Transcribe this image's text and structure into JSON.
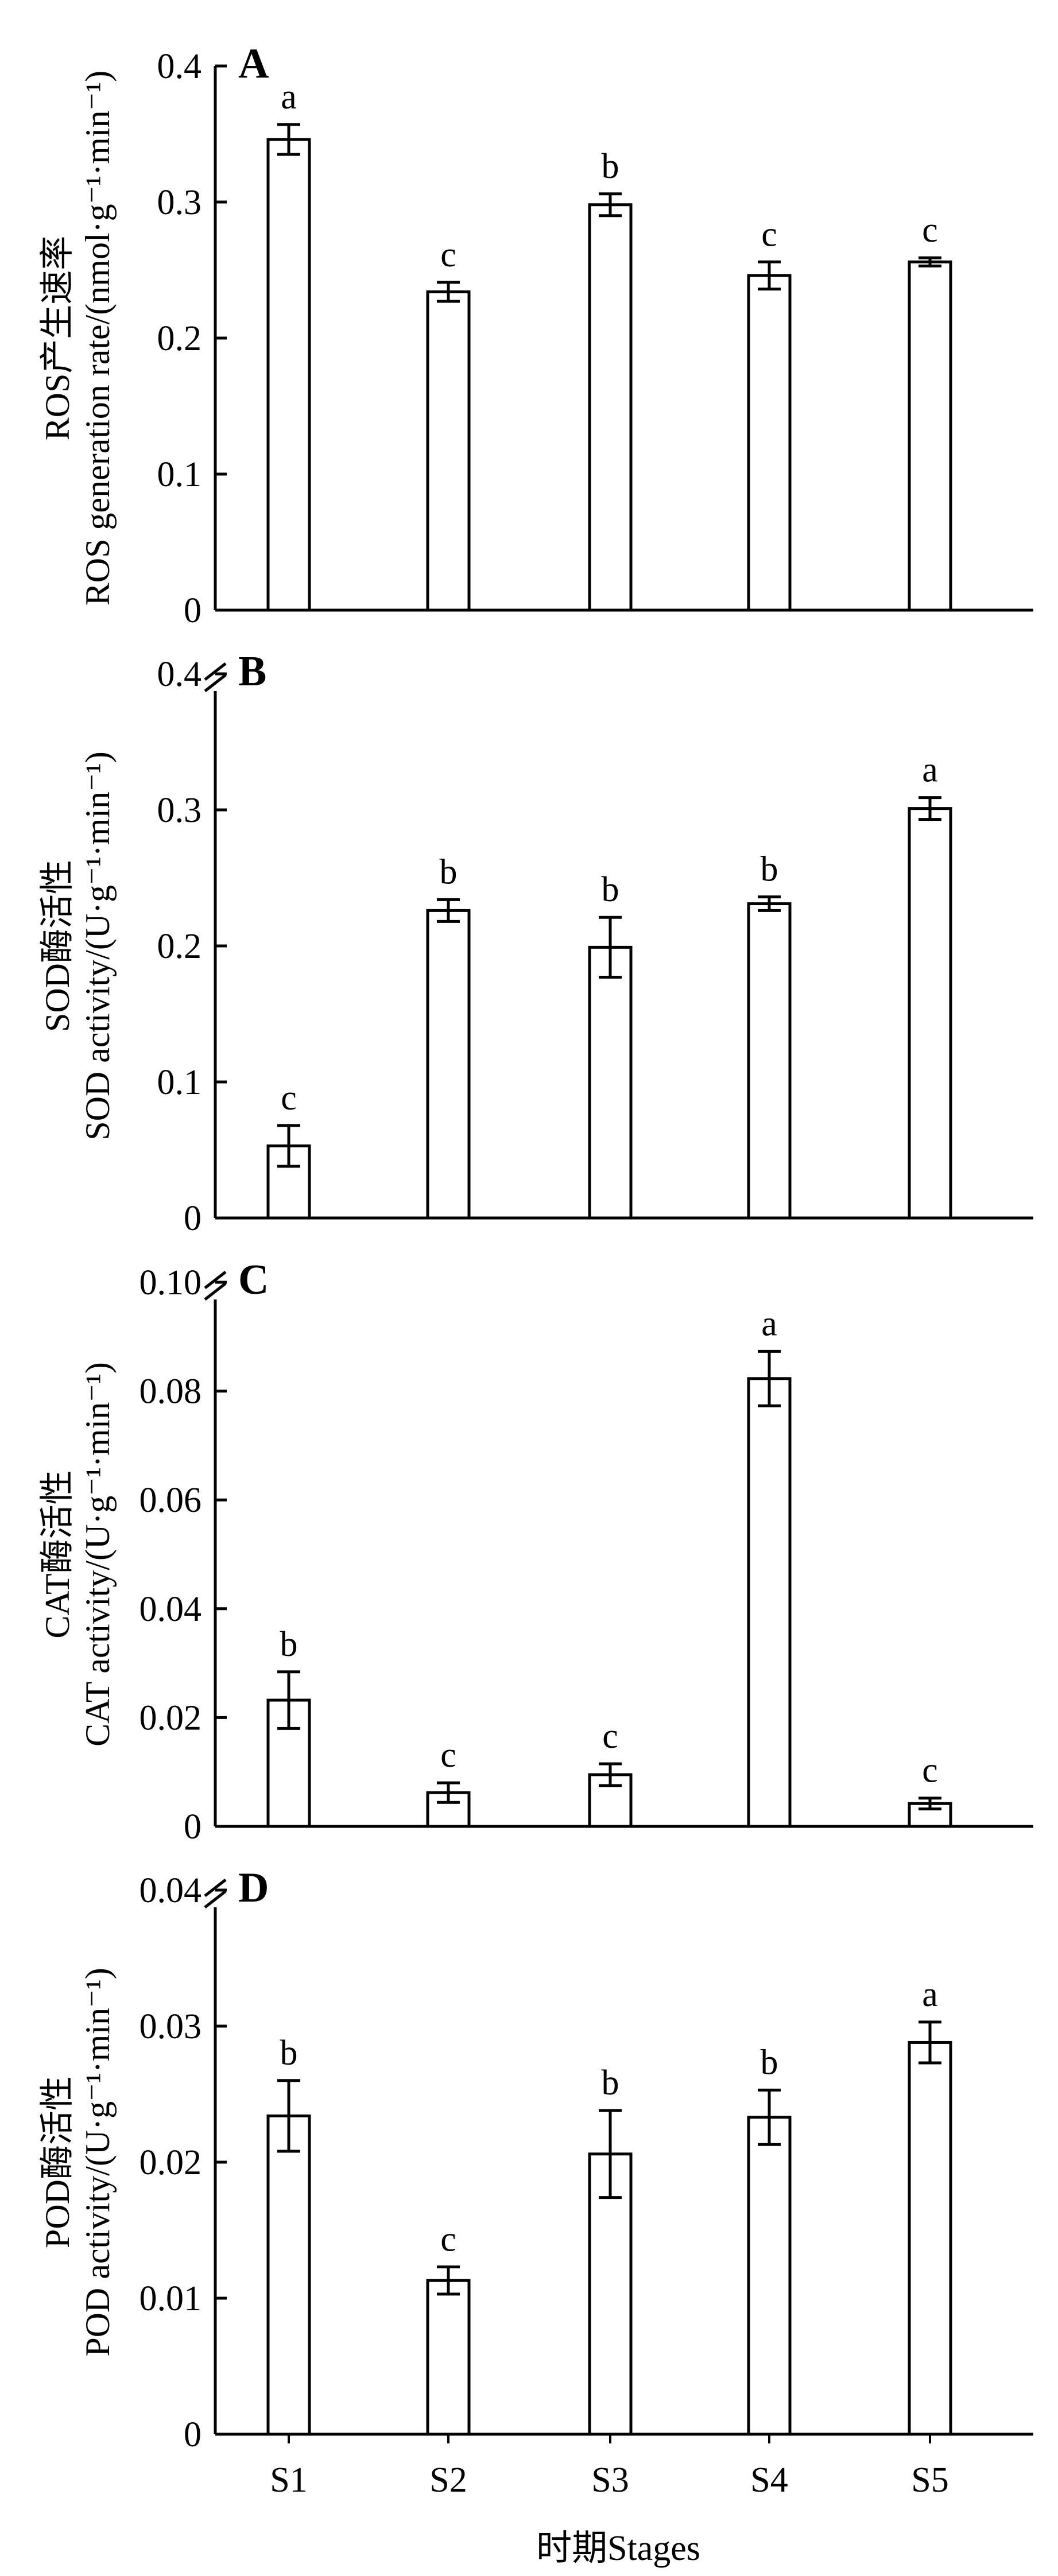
{
  "chart_data": [
    {
      "type": "bar",
      "panel": "A",
      "categories": [
        "S1",
        "S2",
        "S3",
        "S4",
        "S5"
      ],
      "values": [
        0.346,
        0.234,
        0.298,
        0.246,
        0.256
      ],
      "errors": [
        0.011,
        0.007,
        0.008,
        0.01,
        0.003
      ],
      "significance": [
        "a",
        "c",
        "b",
        "c",
        "c"
      ],
      "ylabel_cn": "ROS产生速率",
      "ylabel_en": "ROS generation rate/(nmol·g⁻¹·min⁻¹)",
      "ylim": [
        0,
        0.4
      ],
      "yticks": [
        0,
        0.1,
        0.2,
        0.3,
        0.4
      ],
      "ytick_labels": [
        "0",
        "0.1",
        "0.2",
        "0.3",
        "0.4"
      ]
    },
    {
      "type": "bar",
      "panel": "B",
      "categories": [
        "S1",
        "S2",
        "S3",
        "S4",
        "S5"
      ],
      "values": [
        0.053,
        0.226,
        0.199,
        0.231,
        0.301
      ],
      "errors": [
        0.015,
        0.008,
        0.022,
        0.005,
        0.008
      ],
      "significance": [
        "c",
        "b",
        "b",
        "b",
        "a"
      ],
      "ylabel_cn": "SOD酶活性",
      "ylabel_en": "SOD activity/(U·g⁻¹·min⁻¹)",
      "ylim": [
        0,
        0.4
      ],
      "yticks": [
        0,
        0.1,
        0.2,
        0.3,
        0.4
      ],
      "ytick_labels": [
        "0",
        "0.1",
        "0.2",
        "0.3",
        "0.4"
      ]
    },
    {
      "type": "bar",
      "panel": "C",
      "categories": [
        "S1",
        "S2",
        "S3",
        "S4",
        "S5"
      ],
      "values": [
        0.0232,
        0.0062,
        0.0095,
        0.0823,
        0.0042
      ],
      "errors": [
        0.0052,
        0.0018,
        0.002,
        0.005,
        0.001
      ],
      "significance": [
        "b",
        "c",
        "c",
        "a",
        "c"
      ],
      "ylabel_cn": "CAT酶活性",
      "ylabel_en": "CAT activity/(U·g⁻¹·min⁻¹)",
      "ylim": [
        0,
        0.1
      ],
      "yticks": [
        0,
        0.02,
        0.04,
        0.06,
        0.08,
        0.1
      ],
      "ytick_labels": [
        "0",
        "0.02",
        "0.04",
        "0.06",
        "0.08",
        "0.10"
      ]
    },
    {
      "type": "bar",
      "panel": "D",
      "categories": [
        "S1",
        "S2",
        "S3",
        "S4",
        "S5"
      ],
      "values": [
        0.0234,
        0.0113,
        0.0206,
        0.0233,
        0.0288
      ],
      "errors": [
        0.0026,
        0.001,
        0.0032,
        0.002,
        0.0015
      ],
      "significance": [
        "b",
        "c",
        "b",
        "b",
        "a"
      ],
      "ylabel_cn": "POD酶活性",
      "ylabel_en": "POD activity/(U·g⁻¹·min⁻¹)",
      "ylim": [
        0,
        0.04
      ],
      "yticks": [
        0,
        0.01,
        0.02,
        0.03,
        0.04
      ],
      "ytick_labels": [
        "0",
        "0.01",
        "0.02",
        "0.03",
        "0.04"
      ]
    }
  ],
  "xlabel": "时期Stages",
  "colors": {
    "bar_fill": "#ffffff",
    "stroke": "#000000"
  }
}
